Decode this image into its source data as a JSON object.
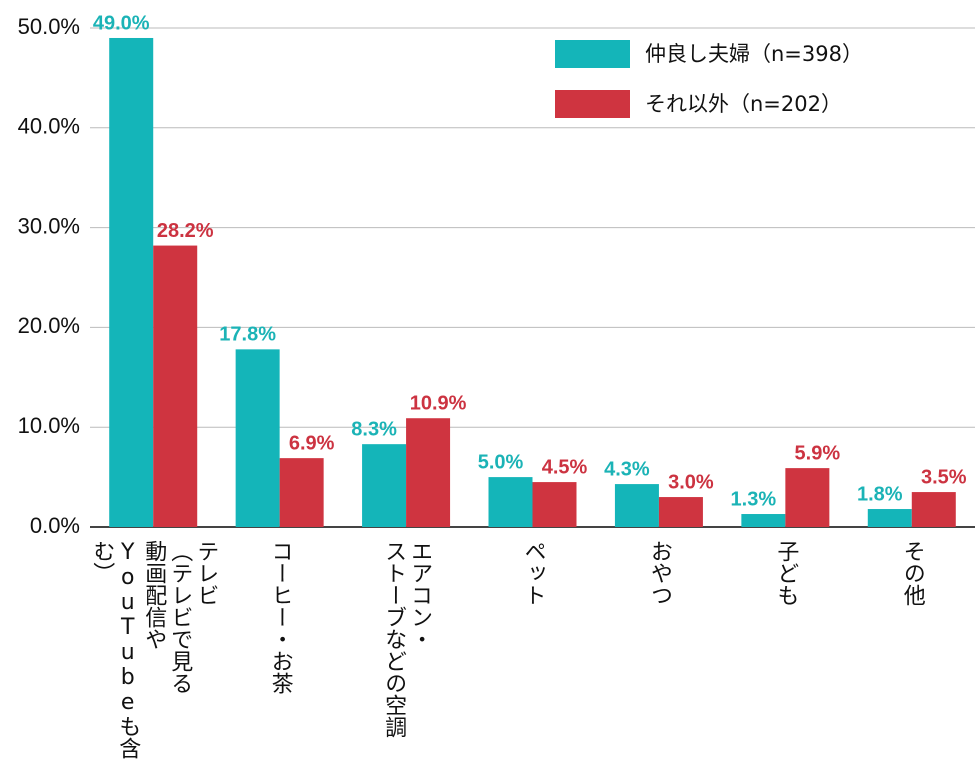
{
  "chart_data": {
    "type": "bar",
    "categories": [
      "テレビ\n（テレビで見る\n動画配信や\nYouTubeも含む）",
      "コーヒー・お茶",
      "エアコン・\nストーブなどの空調",
      "ペット",
      "おやつ",
      "子ども",
      "その他"
    ],
    "series": [
      {
        "name": "仲良し夫婦（n=398）",
        "color": "#14b5b9",
        "label_color": "#1bb3b6",
        "values": [
          49.0,
          17.8,
          8.3,
          5.0,
          4.3,
          1.3,
          1.8
        ],
        "value_labels": [
          "49.0%",
          "17.8%",
          "8.3%",
          "5.0%",
          "4.3%",
          "1.3%",
          "1.8%"
        ]
      },
      {
        "name": "それ以外（n=202）",
        "color": "#cf3440",
        "label_color": "#cc3341",
        "values": [
          28.2,
          6.9,
          10.9,
          4.5,
          3.0,
          5.9,
          3.5
        ],
        "value_labels": [
          "28.2%",
          "6.9%",
          "10.9%",
          "4.5%",
          "3.0%",
          "5.9%",
          "3.5%"
        ]
      }
    ],
    "ylim": [
      0,
      50
    ],
    "yticks": [
      {
        "value": 0,
        "label": "0.0%"
      },
      {
        "value": 10,
        "label": "10.0%"
      },
      {
        "value": 20,
        "label": "20.0%"
      },
      {
        "value": 30,
        "label": "30.0%"
      },
      {
        "value": 40,
        "label": "40.0%"
      },
      {
        "value": 50,
        "label": "50.0%"
      }
    ],
    "grid": true,
    "legend": "top-right"
  }
}
